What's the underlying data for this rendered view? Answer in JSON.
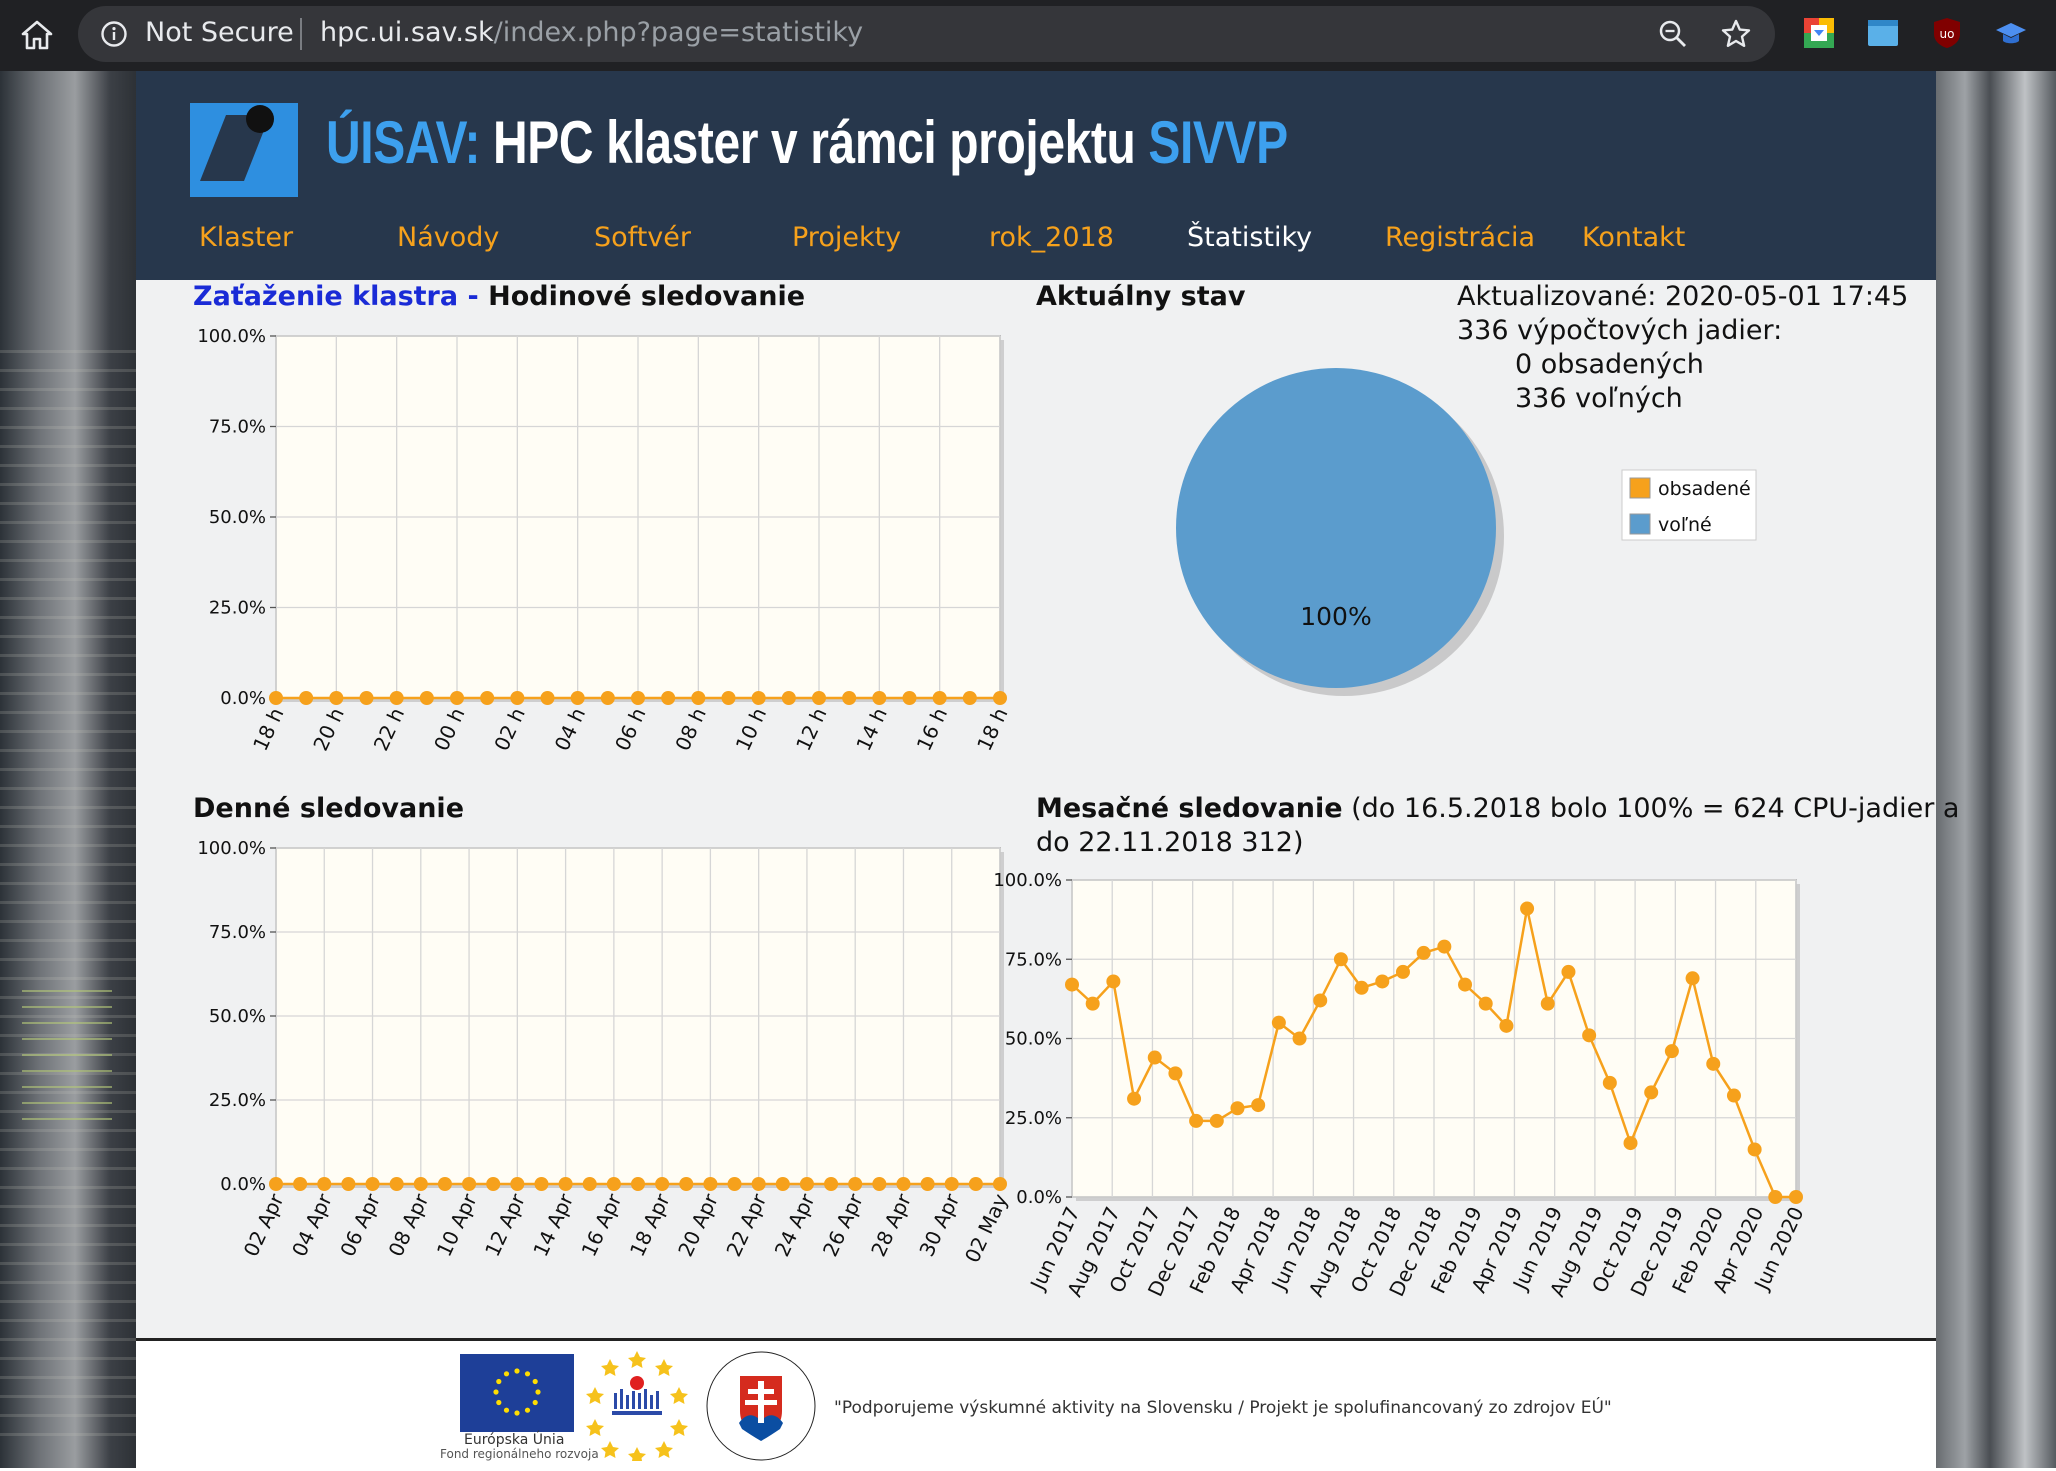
{
  "browser": {
    "security_label": "Not Secure",
    "url_host": "hpc.ui.sav.sk",
    "url_path": "/index.php?page=statistiky"
  },
  "header": {
    "title_prefix": "ÚISAV:",
    "title_main": " HPC klaster v rámci projektu ",
    "title_suffix": "SIVVP"
  },
  "nav": [
    {
      "label": "Klaster",
      "active": false
    },
    {
      "label": "Návody",
      "active": false
    },
    {
      "label": "Softvér",
      "active": false
    },
    {
      "label": "Projekty",
      "active": false
    },
    {
      "label": "rok_2018",
      "active": false
    },
    {
      "label": "Štatistiky",
      "active": true
    },
    {
      "label": "Registrácia",
      "active": false
    },
    {
      "label": "Kontakt",
      "active": false
    }
  ],
  "hourly": {
    "title_blue": "Zaťaženie klastra - ",
    "title_rest": "Hodinové sledovanie"
  },
  "current": {
    "title": "Aktuálny stav",
    "updated": "Aktualizované: 2020-05-01 17:45",
    "cores": "336 výpočtových jadier:",
    "occupied": "0 obsadených",
    "free": "336 voľných"
  },
  "daily": {
    "title": "Denné sledovanie"
  },
  "monthly": {
    "title_bold": "Mesačné sledovanie",
    "title_note": " (do 16.5.2018 bolo 100% = 624 CPU-jadier a",
    "title_note2": "do 22.11.2018 312)"
  },
  "footer": {
    "eu_label": "Európska Únia",
    "eu_sub": "Fond regionálneho rozvoja",
    "quote": "\"Podporujeme výskumné aktivity na Slovensku / Projekt je spolufinancovaný zo zdrojov EÚ\""
  },
  "colors": {
    "accent_orange": "#f6a11c",
    "pie_blue": "#5b9ccd",
    "header_bg": "#27374c",
    "title_blue": "#3da0ee"
  },
  "chart_data": [
    {
      "type": "line",
      "name": "hourly",
      "ylim": [
        0,
        100
      ],
      "y_ticks": [
        "0.0%",
        "25.0%",
        "50.0%",
        "75.0%",
        "100.0%"
      ],
      "x_labels": [
        "18 h",
        "20 h",
        "22 h",
        "00 h",
        "02 h",
        "04 h",
        "06 h",
        "08 h",
        "10 h",
        "12 h",
        "14 h",
        "16 h",
        "18 h"
      ],
      "values": [
        0,
        0,
        0,
        0,
        0,
        0,
        0,
        0,
        0,
        0,
        0,
        0,
        0,
        0,
        0,
        0,
        0,
        0,
        0,
        0,
        0,
        0,
        0,
        0,
        0
      ],
      "grid": true
    },
    {
      "type": "pie",
      "name": "current",
      "slices": [
        {
          "label": "obsadené",
          "value": 0,
          "color": "#f6a11c"
        },
        {
          "label": "voľné",
          "value": 100,
          "color": "#5b9ccd"
        }
      ],
      "data_label": "100%",
      "legend": "right"
    },
    {
      "type": "line",
      "name": "daily",
      "ylim": [
        0,
        100
      ],
      "y_ticks": [
        "0.0%",
        "25.0%",
        "50.0%",
        "75.0%",
        "100.0%"
      ],
      "x_labels": [
        "02 Apr",
        "04 Apr",
        "06 Apr",
        "08 Apr",
        "10 Apr",
        "12 Apr",
        "14 Apr",
        "16 Apr",
        "18 Apr",
        "20 Apr",
        "22 Apr",
        "24 Apr",
        "26 Apr",
        "28 Apr",
        "30 Apr",
        "02 May"
      ],
      "values": [
        0,
        0,
        0,
        0,
        0,
        0,
        0,
        0,
        0,
        0,
        0,
        0,
        0,
        0,
        0,
        0,
        0,
        0,
        0,
        0,
        0,
        0,
        0,
        0,
        0,
        0,
        0,
        0,
        0,
        0,
        0
      ],
      "grid": true
    },
    {
      "type": "line",
      "name": "monthly",
      "ylim": [
        0,
        100
      ],
      "y_ticks": [
        "0.0%",
        "25.0%",
        "50.0%",
        "75.0%",
        "100.0%"
      ],
      "x_labels": [
        "Jun 2017",
        "Aug 2017",
        "Oct 2017",
        "Dec 2017",
        "Feb 2018",
        "Apr 2018",
        "Jun 2018",
        "Aug 2018",
        "Oct 2018",
        "Dec 2018",
        "Feb 2019",
        "Apr 2019",
        "Jun 2019",
        "Aug 2019",
        "Oct 2019",
        "Dec 2019",
        "Feb 2020",
        "Apr 2020",
        "Jun 2020"
      ],
      "values": [
        67,
        61,
        68,
        31,
        44,
        39,
        24,
        24,
        28,
        29,
        55,
        50,
        62,
        75,
        66,
        68,
        71,
        77,
        79,
        67,
        61,
        54,
        91,
        61,
        71,
        51,
        36,
        17,
        33,
        46,
        69,
        42,
        32,
        15,
        0,
        0
      ],
      "grid": true
    }
  ]
}
